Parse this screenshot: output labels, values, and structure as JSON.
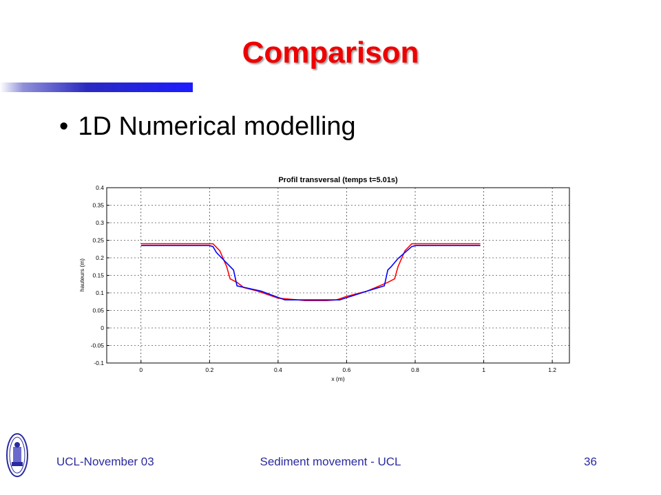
{
  "slide": {
    "title": "Comparison",
    "bullet": "1D Numerical modelling"
  },
  "footer": {
    "left": "UCL-November 03",
    "center": "Sediment movement - UCL",
    "page_number": "36"
  },
  "colors": {
    "title": "#ee0000",
    "accent_bar": "#1c1cff",
    "footer_text": "#2a2aa0",
    "series_red": "#ff0000",
    "series_blue": "#0000ff"
  },
  "logo": {
    "icon": "university-seal-icon"
  },
  "chart_data": {
    "type": "line",
    "title": "Profil transversal (temps t=5.01s)",
    "xlabel": "x (m)",
    "ylabel": "hauteurs (m)",
    "xlim": [
      -0.1,
      1.25
    ],
    "ylim": [
      -0.1,
      0.4
    ],
    "xticks": [
      0,
      0.2,
      0.4,
      0.6,
      0.8,
      1,
      1.2
    ],
    "xtick_labels": [
      "0",
      "0.2",
      "0.4",
      "0.6",
      "0.8",
      "1",
      "1.2"
    ],
    "yticks": [
      -0.1,
      -0.05,
      0,
      0.05,
      0.1,
      0.15,
      0.2,
      0.25,
      0.3,
      0.35,
      0.4
    ],
    "ytick_labels": [
      "-0.1",
      "-0.05",
      "0",
      "0.05",
      "0.1",
      "0.15",
      "0.2",
      "0.25",
      "0.3",
      "0.35",
      "0.4"
    ],
    "grid": "dashed",
    "series": [
      {
        "color": "#ff0000",
        "x": [
          0,
          0.2,
          0.21,
          0.23,
          0.25,
          0.26,
          0.28,
          0.3,
          0.34,
          0.4,
          0.48,
          0.54,
          0.57,
          0.6,
          0.66,
          0.72,
          0.74,
          0.75,
          0.77,
          0.79,
          0.8,
          0.99
        ],
        "y": [
          0.24,
          0.24,
          0.24,
          0.22,
          0.175,
          0.14,
          0.13,
          0.115,
          0.105,
          0.085,
          0.078,
          0.078,
          0.08,
          0.09,
          0.105,
          0.13,
          0.14,
          0.175,
          0.22,
          0.24,
          0.24,
          0.24
        ]
      },
      {
        "color": "#0000ff",
        "x": [
          0,
          0.2,
          0.21,
          0.22,
          0.24,
          0.27,
          0.28,
          0.35,
          0.42,
          0.5,
          0.58,
          0.66,
          0.71,
          0.72,
          0.73,
          0.75,
          0.77,
          0.79,
          0.8,
          0.99
        ],
        "y": [
          0.235,
          0.235,
          0.232,
          0.215,
          0.195,
          0.165,
          0.12,
          0.105,
          0.08,
          0.08,
          0.08,
          0.105,
          0.12,
          0.165,
          0.175,
          0.198,
          0.215,
          0.232,
          0.235,
          0.235
        ]
      }
    ]
  }
}
